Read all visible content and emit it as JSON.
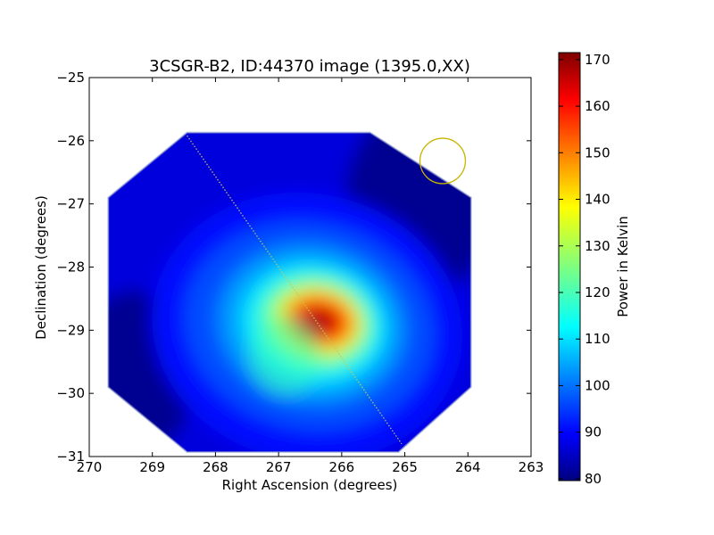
{
  "chart_data": {
    "type": "heatmap",
    "title": "3CSGR-B2, ID:44370 image (1395.0,XX)",
    "xlabel": "Right Ascension (degrees)",
    "ylabel": "Declination (degrees)",
    "xlim": [
      270,
      263
    ],
    "ylim": [
      -31,
      -25
    ],
    "x_ticks": [
      270,
      269,
      268,
      267,
      266,
      265,
      264,
      263
    ],
    "y_ticks": [
      -25,
      -26,
      -27,
      -28,
      -29,
      -30,
      -31
    ],
    "x_tick_labels": [
      "270",
      "269",
      "268",
      "267",
      "266",
      "265",
      "264",
      "263"
    ],
    "y_tick_labels": [
      "−25",
      "−26",
      "−27",
      "−28",
      "−29",
      "−30",
      "−31"
    ],
    "colorbar": {
      "label": "Power in Kelvin",
      "range": [
        79.6,
        171.5
      ],
      "ticks": [
        80,
        90,
        100,
        110,
        120,
        130,
        140,
        150,
        160,
        170
      ],
      "tick_labels": [
        "80",
        "90",
        "100",
        "110",
        "120",
        "130",
        "140",
        "150",
        "160",
        "170"
      ],
      "colormap": "jet"
    },
    "data_region_octagon": [
      [
        268.45,
        -25.87
      ],
      [
        265.55,
        -25.87
      ],
      [
        263.95,
        -26.9
      ],
      [
        263.95,
        -29.9
      ],
      [
        265.1,
        -30.93
      ],
      [
        268.45,
        -30.93
      ],
      [
        269.7,
        -29.9
      ],
      [
        269.7,
        -26.9
      ]
    ],
    "peak": {
      "ra": 266.35,
      "dec": -28.85,
      "value": 171.5
    },
    "source_component": {
      "ra": 266.9,
      "dec": -29.4,
      "value": 120
    },
    "background_level": 88,
    "dotted_line": {
      "color": "#c8c850",
      "from": [
        268.45,
        -25.92
      ],
      "to": [
        265.05,
        -30.8
      ]
    },
    "beam_circle": {
      "ra": 264.4,
      "dec": -26.32,
      "radius_deg": 0.36,
      "color": "#c8b400"
    }
  }
}
